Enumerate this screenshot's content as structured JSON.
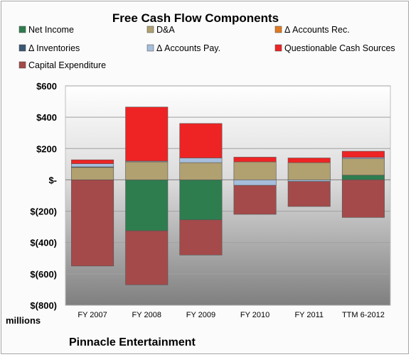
{
  "chart_data": {
    "type": "bar",
    "stacked": true,
    "title": "Free Cash Flow Components",
    "unit_label": "millions",
    "footer": "Pinnacle Entertainment",
    "categories": [
      "FY 2007",
      "FY 2008",
      "FY 2009",
      "FY 2010",
      "FY 2011",
      "TTM 6-2012"
    ],
    "ylim": [
      -800,
      600
    ],
    "yticks": [
      600,
      400,
      200,
      0,
      -200,
      -400,
      -600,
      -800
    ],
    "ytick_labels": [
      "$600",
      "$400",
      "$200",
      "$-",
      "$(200)",
      "$(400)",
      "$(600)",
      "$(800)"
    ],
    "grid": true,
    "legend_position": "top",
    "series": [
      {
        "name": "Net Income",
        "color": "#2e7d4f",
        "values": [
          0,
          -325,
          -255,
          0,
          0,
          30
        ]
      },
      {
        "name": "D&A",
        "color": "#b1a070",
        "values": [
          80,
          115,
          110,
          115,
          110,
          105
        ]
      },
      {
        "name": "Δ Accounts Rec.",
        "color": "#e07b22",
        "values": [
          0,
          0,
          0,
          0,
          0,
          0
        ]
      },
      {
        "name": "Δ Inventories",
        "color": "#3a5775",
        "values": [
          3,
          0,
          0,
          0,
          0,
          0
        ]
      },
      {
        "name": "Δ Accounts Pay.",
        "color": "#a6bedb",
        "values": [
          20,
          5,
          30,
          -35,
          -10,
          8
        ]
      },
      {
        "name": "Questionable Cash Sources",
        "color": "#ee2424",
        "values": [
          25,
          345,
          220,
          30,
          30,
          40
        ]
      },
      {
        "name": "Capital Expenditure",
        "color": "#a44a4a",
        "values": [
          -550,
          -345,
          -225,
          -185,
          -160,
          -240
        ]
      }
    ]
  }
}
